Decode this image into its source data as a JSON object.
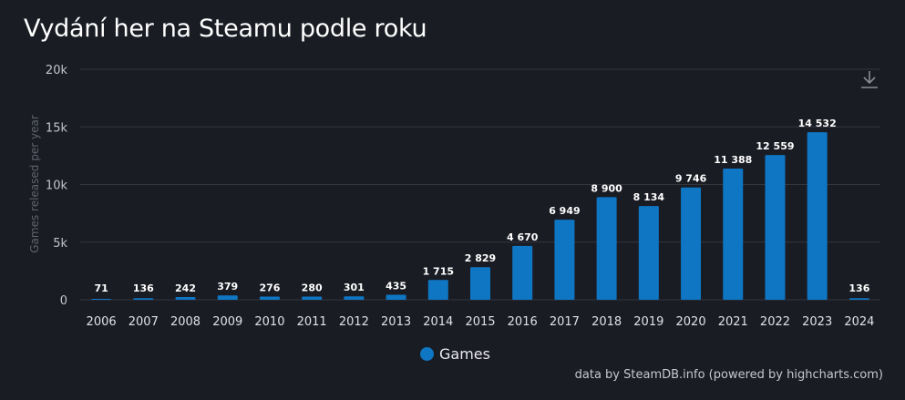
{
  "colors": {
    "bar": "#0e76c3",
    "background": "#1a1c24",
    "grid": "#33363f"
  },
  "icons": {
    "download": "download-icon"
  },
  "chart_data": {
    "type": "bar",
    "title": "Vydání her na Steamu podle roku",
    "ylabel": "Games released per year",
    "xlabel": "",
    "ylim": [
      0,
      20000
    ],
    "yticks": [
      {
        "value": 0,
        "label": "0"
      },
      {
        "value": 5000,
        "label": "5k"
      },
      {
        "value": 10000,
        "label": "10k"
      },
      {
        "value": 15000,
        "label": "15k"
      },
      {
        "value": 20000,
        "label": "20k"
      }
    ],
    "grid": true,
    "legend_position": "bottom-center",
    "categories": [
      "2006",
      "2007",
      "2008",
      "2009",
      "2010",
      "2011",
      "2012",
      "2013",
      "2014",
      "2015",
      "2016",
      "2017",
      "2018",
      "2019",
      "2020",
      "2021",
      "2022",
      "2023",
      "2024"
    ],
    "series": [
      {
        "name": "Games",
        "values": [
          71,
          136,
          242,
          379,
          276,
          280,
          301,
          435,
          1715,
          2829,
          4670,
          6949,
          8900,
          8134,
          9746,
          11388,
          12559,
          14532,
          136
        ],
        "labels": [
          "71",
          "136",
          "242",
          "379",
          "276",
          "280",
          "301",
          "435",
          "1 715",
          "2 829",
          "4 670",
          "6 949",
          "8 900",
          "8 134",
          "9 746",
          "11 388",
          "12 559",
          "14 532",
          "136"
        ]
      }
    ]
  },
  "credits": "data by SteamDB.info (powered by highcharts.com)"
}
